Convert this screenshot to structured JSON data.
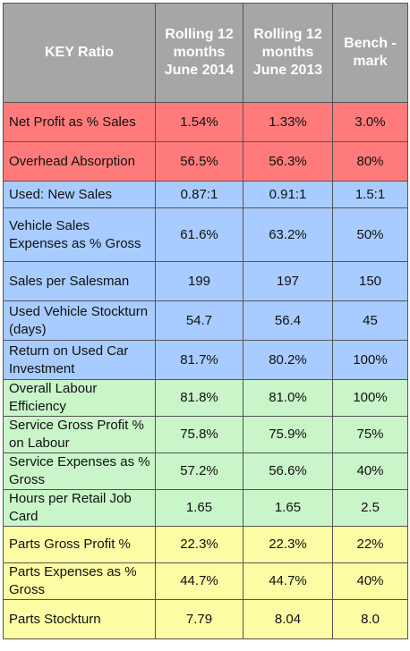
{
  "table": {
    "headers": [
      "KEY Ratio",
      "Rolling 12 months June 2014",
      "Rolling 12 months June 2013",
      "Bench -mark"
    ],
    "colors": {
      "header": "#a6a6a6",
      "red": "#ff7b7b",
      "blue": "#a8ccff",
      "green": "#c9f5c9",
      "yellow": "#fcfca4"
    },
    "rows": [
      {
        "group": "red",
        "label": "Net Profit as % Sales",
        "v2014": "1.54%",
        "v2013": "1.33%",
        "benchmark": "3.0%"
      },
      {
        "group": "red",
        "label": "Overhead Absorption",
        "v2014": "56.5%",
        "v2013": "56.3%",
        "benchmark": "80%"
      },
      {
        "group": "blue",
        "label": "Used: New Sales",
        "v2014": "0.87:1",
        "v2013": "0.91:1",
        "benchmark": "1.5:1"
      },
      {
        "group": "blue",
        "label": "Vehicle Sales Expenses as % Gross",
        "v2014": "61.6%",
        "v2013": "63.2%",
        "benchmark": "50%"
      },
      {
        "group": "blue",
        "label": "Sales per Salesman",
        "v2014": "199",
        "v2013": "197",
        "benchmark": "150"
      },
      {
        "group": "blue",
        "label": "Used Vehicle Stockturn (days)",
        "v2014": "54.7",
        "v2013": "56.4",
        "benchmark": "45"
      },
      {
        "group": "blue",
        "label": "Return on Used Car Investment",
        "v2014": "81.7%",
        "v2013": "80.2%",
        "benchmark": "100%"
      },
      {
        "group": "green",
        "label": "Overall Labour Efficiency",
        "v2014": "81.8%",
        "v2013": "81.0%",
        "benchmark": "100%"
      },
      {
        "group": "green",
        "label": "Service Gross Profit % on Labour",
        "v2014": "75.8%",
        "v2013": "75.9%",
        "benchmark": "75%"
      },
      {
        "group": "green",
        "label": "Service Expenses as % Gross",
        "v2014": "57.2%",
        "v2013": "56.6%",
        "benchmark": "40%"
      },
      {
        "group": "green",
        "label": "Hours per Retail Job Card",
        "v2014": "1.65",
        "v2013": "1.65",
        "benchmark": "2.5"
      },
      {
        "group": "yellow",
        "label": "Parts Gross Profit %",
        "v2014": "22.3%",
        "v2013": "22.3%",
        "benchmark": "22%"
      },
      {
        "group": "yellow",
        "label": "Parts Expenses as % Gross",
        "v2014": "44.7%",
        "v2013": "44.7%",
        "benchmark": "40%"
      },
      {
        "group": "yellow",
        "label": "Parts Stockturn",
        "v2014": "7.79",
        "v2013": "8.04",
        "benchmark": "8.0"
      }
    ]
  }
}
